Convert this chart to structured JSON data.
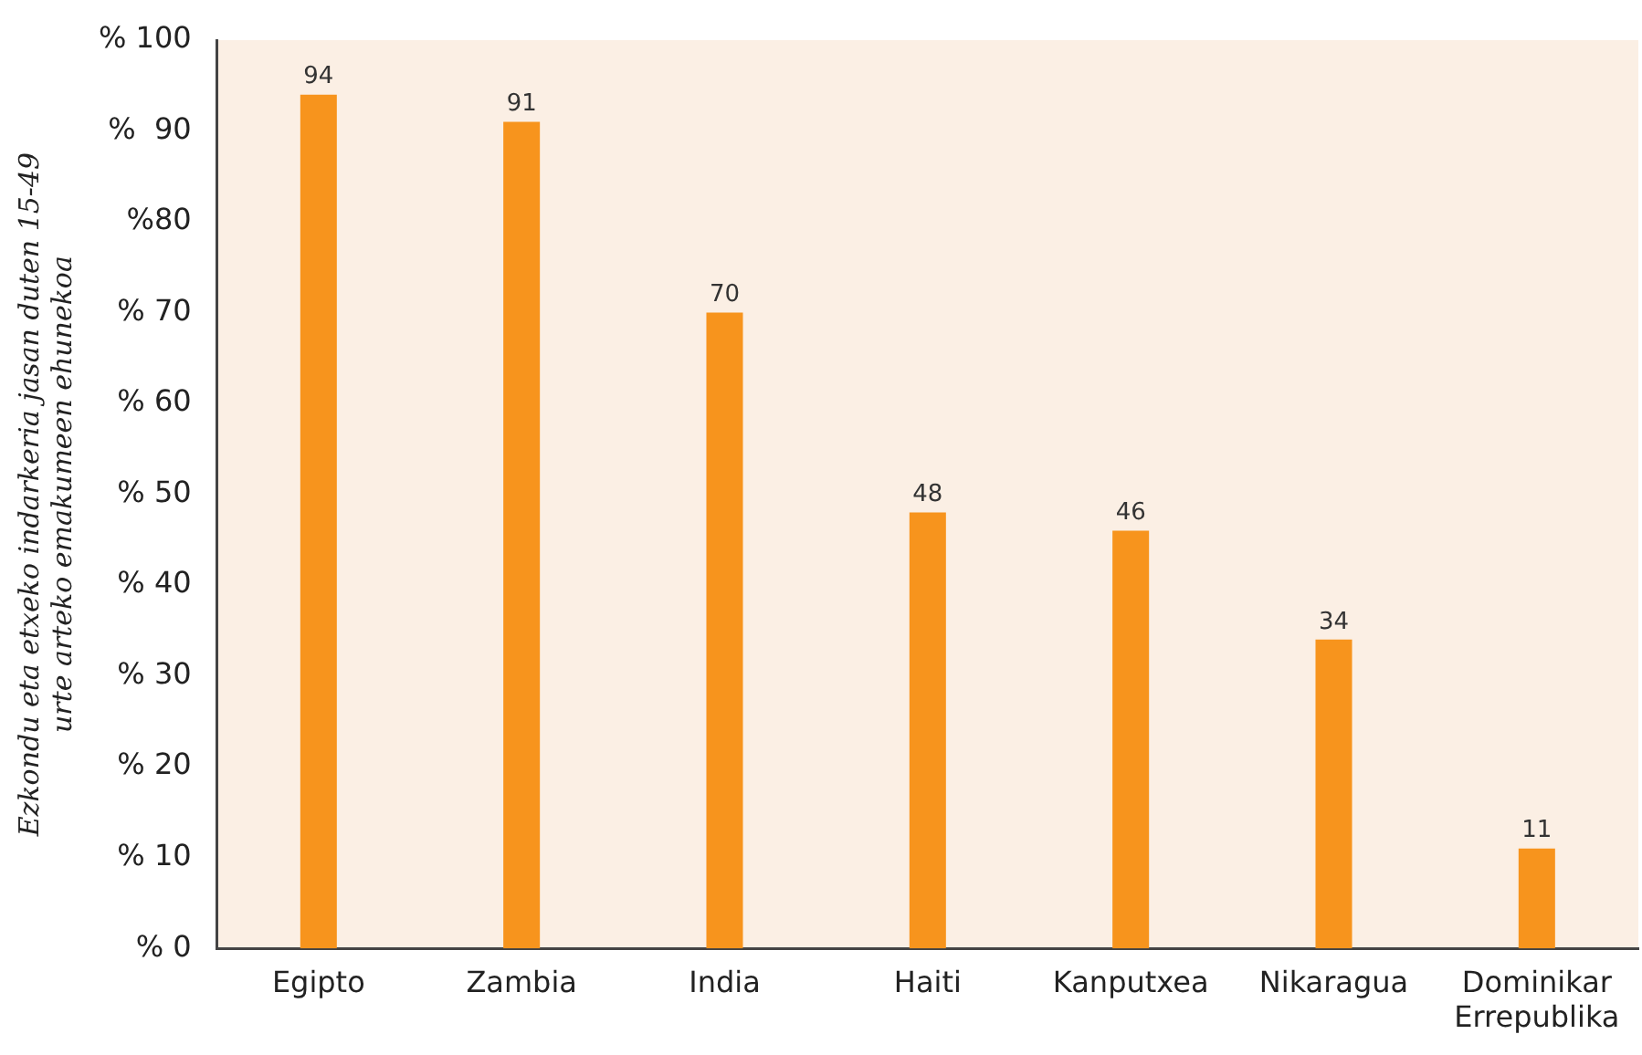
{
  "chart_data": {
    "type": "bar",
    "ylabel": "Ezkondu eta etxeko indarkeria jasan duten 15-49 urte arteko emakumeen ehunekoa",
    "categories": [
      "Egipto",
      "Zambia",
      "India",
      "Haiti",
      "Kanputxea",
      "Nikaragua",
      "Dominikar Errepublika"
    ],
    "values": [
      94,
      91,
      70,
      48,
      46,
      34,
      11
    ],
    "color": "#f7941d",
    "ylim": [
      0,
      100
    ],
    "yticks": [
      {
        "value": 0,
        "label": "% 0"
      },
      {
        "value": 10,
        "label": "% 10"
      },
      {
        "value": 20,
        "label": "% 20"
      },
      {
        "value": 30,
        "label": "% 30"
      },
      {
        "value": 40,
        "label": "% 40"
      },
      {
        "value": 50,
        "label": "% 50"
      },
      {
        "value": 60,
        "label": "% 60"
      },
      {
        "value": 70,
        "label": "% 70"
      },
      {
        "value": 80,
        "label": "%80"
      },
      {
        "value": 90,
        "label": "%  90"
      },
      {
        "value": 100,
        "label": "% 100"
      }
    ],
    "data_labels": true,
    "grid": false,
    "legend": false
  }
}
